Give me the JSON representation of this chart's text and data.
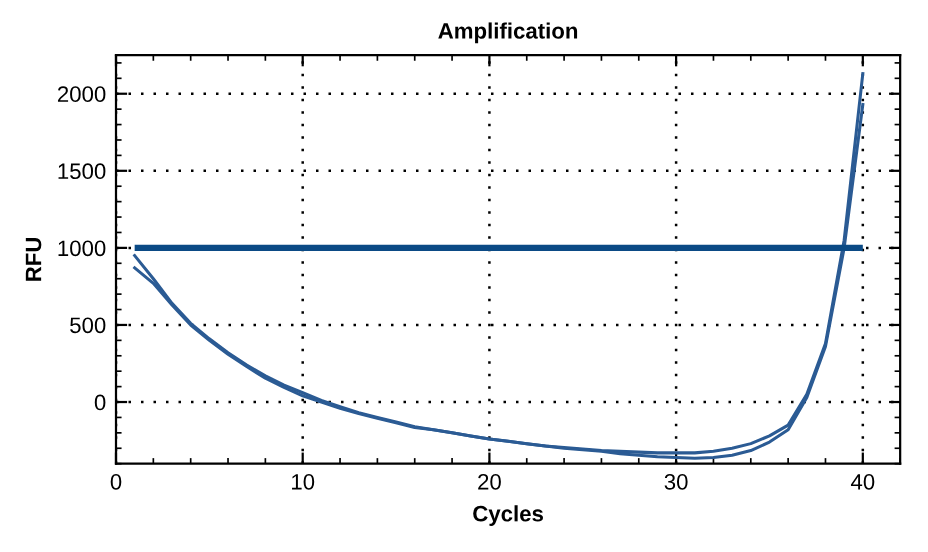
{
  "chart_data": {
    "type": "line",
    "title": "Amplification",
    "xlabel": "Cycles",
    "ylabel": "RFU",
    "x": [
      1,
      2,
      3,
      4,
      5,
      6,
      7,
      8,
      9,
      10,
      11,
      12,
      13,
      14,
      15,
      16,
      17,
      18,
      19,
      20,
      21,
      22,
      23,
      24,
      25,
      26,
      27,
      28,
      29,
      30,
      31,
      32,
      33,
      34,
      35,
      36,
      37,
      38,
      39,
      40
    ],
    "series": [
      {
        "color": "#2b5b94",
        "values": [
          950,
          800,
          640,
          510,
          410,
          320,
          240,
          170,
          110,
          60,
          10,
          -30,
          -70,
          -100,
          -130,
          -160,
          -180,
          -200,
          -220,
          -240,
          -255,
          -270,
          -285,
          -295,
          -305,
          -315,
          -320,
          -325,
          -330,
          -330,
          -330,
          -320,
          -300,
          -270,
          -220,
          -150,
          50,
          380,
          1050,
          2130
        ]
      },
      {
        "color": "#2b5b94",
        "values": [
          870,
          770,
          630,
          500,
          400,
          310,
          230,
          155,
          95,
          40,
          0,
          -40,
          -75,
          -105,
          -135,
          -165,
          -180,
          -200,
          -220,
          -240,
          -255,
          -270,
          -285,
          -300,
          -310,
          -320,
          -335,
          -345,
          -355,
          -360,
          -365,
          -360,
          -345,
          -315,
          -260,
          -180,
          30,
          360,
          1000,
          1930
        ]
      }
    ],
    "ref_lines": [
      {
        "axis": "y",
        "value": 1000,
        "color": "#0b4a85"
      }
    ],
    "xlim": [
      0,
      42
    ],
    "xticks": [
      0,
      10,
      20,
      30,
      40
    ],
    "ylim": [
      -400,
      2250
    ],
    "yticks": [
      0,
      500,
      1000,
      1500,
      2000
    ],
    "grid": true,
    "line_style": "solid",
    "marker": "none",
    "legend": false
  }
}
